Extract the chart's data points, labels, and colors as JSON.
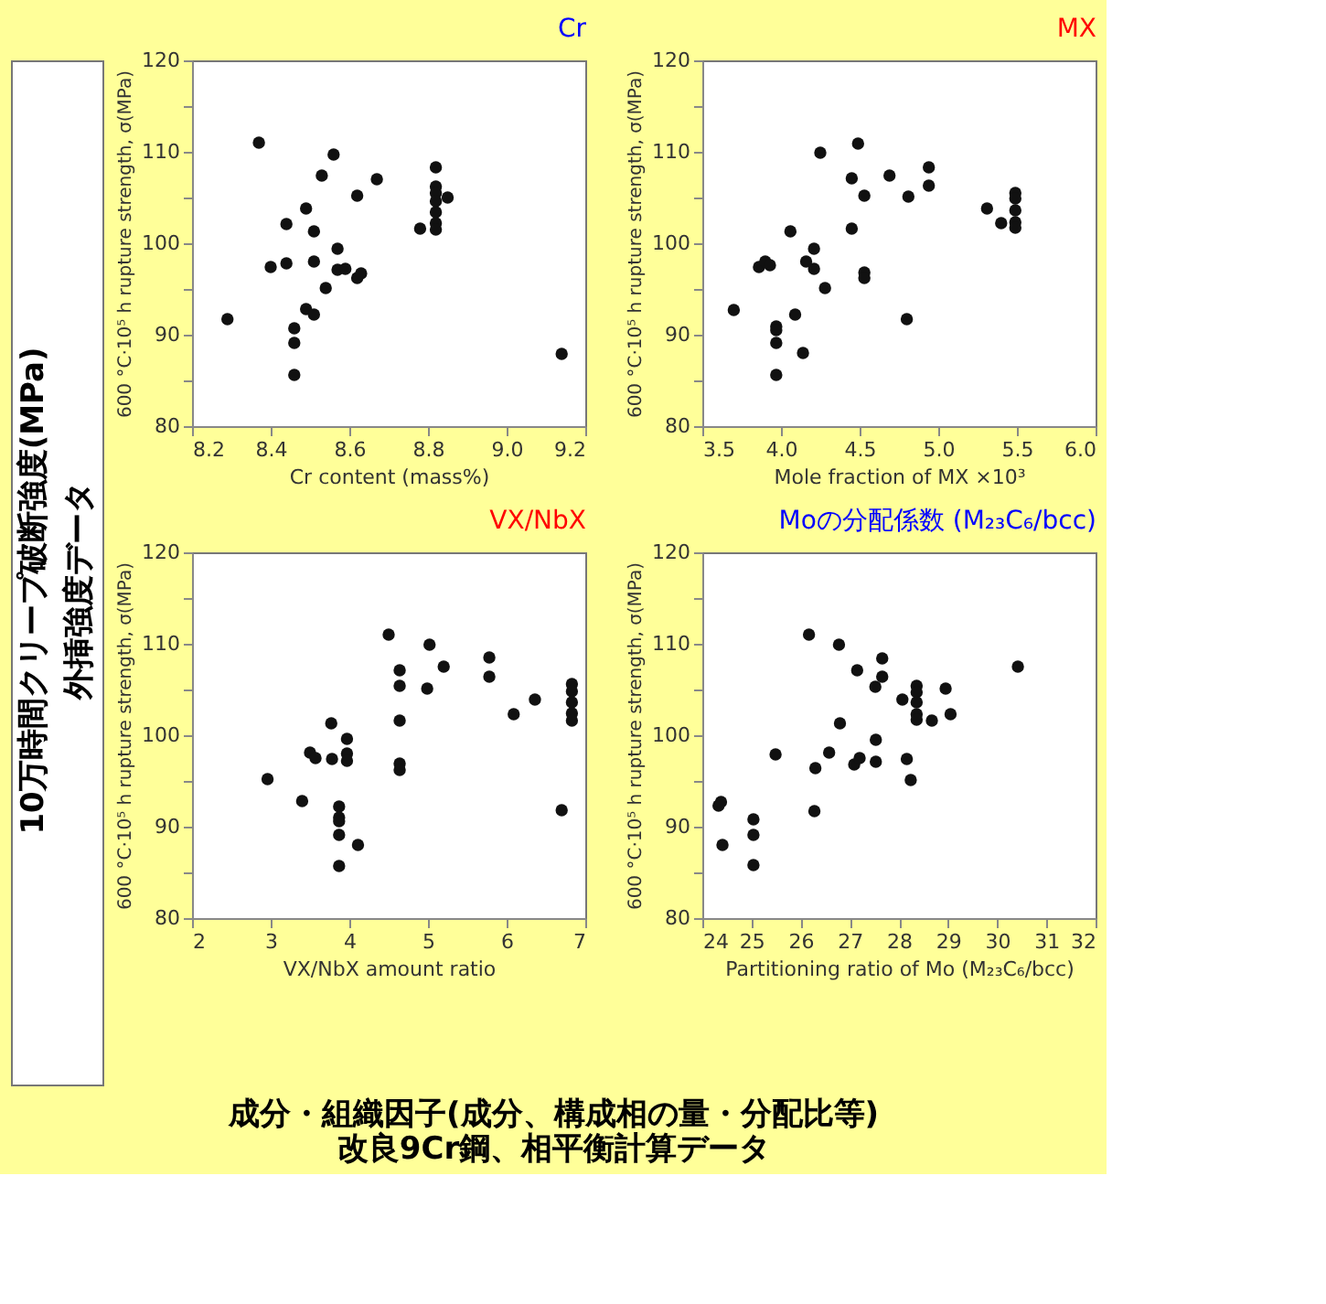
{
  "chart_data": [
    {
      "type": "scatter",
      "title": "Cr",
      "xlabel": "Cr content (mass%)",
      "ylabel": "600 °C·10⁵ h rupture strength, σ(MPa)",
      "x": [
        8.37,
        8.29,
        8.4,
        8.44,
        8.44,
        8.46,
        8.46,
        8.46,
        8.49,
        8.49,
        8.51,
        8.51,
        8.51,
        8.53,
        8.54,
        8.56,
        8.57,
        8.57,
        8.59,
        8.62,
        8.63,
        8.62,
        8.67,
        8.78,
        8.82,
        8.82,
        8.82,
        8.82,
        8.82,
        8.82,
        8.82,
        8.85,
        9.14
      ],
      "series": [
        {
          "color": "#111111",
          "values": [
            111,
            91.7,
            97.4,
            97.8,
            102.1,
            90.7,
            89.1,
            85.6,
            103.8,
            92.8,
            92.2,
            101.3,
            98.0,
            107.4,
            95.1,
            109.7,
            99.4,
            97.1,
            97.2,
            96.2,
            96.7,
            105.2,
            107.0,
            101.6,
            108.3,
            106.2,
            105.5,
            104.6,
            103.4,
            102.2,
            101.5,
            105.0,
            87.9
          ]
        }
      ],
      "xlim": [
        8.2,
        9.2
      ],
      "xticks": [
        8.2,
        8.4,
        8.6,
        8.8,
        {
          "value": 9,
          "label": "9.0"
        },
        9.2
      ],
      "ylim": [
        80,
        120
      ],
      "yticks": [
        80,
        {
          "value": 85,
          "label": null
        },
        90,
        {
          "value": 95,
          "label": null
        },
        100,
        {
          "value": 105,
          "label": null
        },
        110,
        {
          "value": 115,
          "label": null
        },
        120
      ],
      "grid": false,
      "marker": "circle",
      "annotations": [
        "10万時間クリープ破断強度(MPa)",
        "外挿強度データ",
        "成分・組織因子(成分、構成相の量・分配比等)",
        "改良9Cr鋼、相平衡計算データ"
      ]
    },
    {
      "type": "scatter",
      "title": "MX",
      "xlabel": "Mole fraction of MX ×10³",
      "ylabel": "600 °C·10⁵ h rupture strength, σ(MPa)",
      "x": [
        3.7,
        3.86,
        3.9,
        3.93,
        3.97,
        3.97,
        3.97,
        3.97,
        4.06,
        4.09,
        4.14,
        4.16,
        4.21,
        4.21,
        4.25,
        4.28,
        4.45,
        4.45,
        4.49,
        4.53,
        4.53,
        4.53,
        4.69,
        4.8,
        4.81,
        4.94,
        4.94,
        5.31,
        5.4,
        5.49,
        5.49,
        5.49,
        5.49,
        5.49
      ],
      "series": [
        {
          "color": "#111111",
          "values": [
            92.7,
            97.4,
            98.0,
            97.6,
            90.9,
            90.5,
            89.1,
            85.6,
            101.3,
            92.2,
            88.0,
            98.0,
            99.4,
            97.2,
            109.9,
            95.1,
            107.1,
            101.6,
            110.9,
            105.2,
            96.8,
            96.2,
            107.4,
            91.7,
            105.1,
            108.3,
            106.3,
            103.8,
            102.2,
            105.5,
            104.9,
            103.6,
            102.3,
            101.7
          ]
        }
      ],
      "xlim": [
        3.5,
        6.0
      ],
      "xticks": [
        3.5,
        {
          "value": 4,
          "label": "4.0"
        },
        4.5,
        {
          "value": 5,
          "label": "5.0"
        },
        5.5,
        {
          "value": 6,
          "label": "6.0"
        }
      ],
      "ylim": [
        80,
        120
      ],
      "yticks": [
        80,
        {
          "value": 85,
          "label": null
        },
        90,
        {
          "value": 95,
          "label": null
        },
        100,
        {
          "value": 105,
          "label": null
        },
        110,
        {
          "value": 115,
          "label": null
        },
        120
      ],
      "grid": false,
      "marker": "circle"
    },
    {
      "type": "scatter",
      "title": "VX/NbX",
      "xlabel": "VX/NbX amount ratio",
      "ylabel": "600 °C·10⁵ h rupture strength, σ(MPa)",
      "x": [
        4.5,
        2.96,
        3.4,
        3.5,
        3.57,
        3.77,
        3.78,
        3.87,
        3.87,
        3.87,
        3.87,
        3.87,
        3.97,
        3.97,
        3.97,
        4.11,
        4.64,
        4.64,
        4.64,
        4.64,
        4.64,
        4.99,
        5.02,
        5.2,
        5.78,
        5.78,
        6.09,
        6.36,
        6.7,
        6.83,
        6.83,
        6.83,
        6.83,
        6.83
      ],
      "series": [
        {
          "color": "#111111",
          "values": [
            111.0,
            95.2,
            92.8,
            98.1,
            97.5,
            101.3,
            97.4,
            92.2,
            91.0,
            90.6,
            89.1,
            85.7,
            99.6,
            98.0,
            97.2,
            88.0,
            107.1,
            105.4,
            101.6,
            96.9,
            96.2,
            105.1,
            109.9,
            107.5,
            108.5,
            106.4,
            102.3,
            103.9,
            91.8,
            105.6,
            104.8,
            103.6,
            102.4,
            101.6
          ]
        }
      ],
      "xlim": [
        2,
        7
      ],
      "xticks": [
        2,
        3,
        4,
        5,
        6,
        7
      ],
      "ylim": [
        80,
        120
      ],
      "yticks": [
        80,
        {
          "value": 85,
          "label": null
        },
        90,
        {
          "value": 95,
          "label": null
        },
        100,
        {
          "value": 105,
          "label": null
        },
        110,
        {
          "value": 115,
          "label": null
        },
        120
      ],
      "grid": false,
      "marker": "circle"
    },
    {
      "type": "scatter",
      "title": "Moの分配係数 (M₂₃C₆/bcc)",
      "xlabel": "Partitioning ratio of Mo (M₂₃C₆/bcc)",
      "ylabel": "600 °C·10⁵ h rupture strength, σ(MPa)",
      "x": [
        26.17,
        26.78,
        24.33,
        24.38,
        24.41,
        25.04,
        25.04,
        25.04,
        25.49,
        26.3,
        26.28,
        26.58,
        26.8,
        27.09,
        27.15,
        27.2,
        27.52,
        27.53,
        27.53,
        27.66,
        27.66,
        28.07,
        28.16,
        28.24,
        28.36,
        28.36,
        28.36,
        28.36,
        28.36,
        28.67,
        28.95,
        29.05,
        30.42
      ],
      "series": [
        {
          "color": "#111111",
          "values": [
            111.0,
            109.9,
            92.3,
            92.7,
            88.0,
            90.8,
            89.1,
            85.8,
            97.9,
            96.4,
            91.7,
            98.1,
            101.3,
            96.8,
            107.1,
            97.5,
            105.3,
            99.5,
            97.1,
            108.4,
            106.4,
            103.9,
            97.4,
            95.1,
            105.4,
            104.7,
            103.6,
            102.3,
            101.7,
            101.6,
            105.1,
            102.3,
            107.5
          ]
        }
      ],
      "xlim": [
        24,
        32
      ],
      "xticks": [
        24,
        25,
        26,
        27,
        28,
        29,
        30,
        31,
        32
      ],
      "ylim": [
        80,
        120
      ],
      "yticks": [
        80,
        {
          "value": 85,
          "label": null
        },
        90,
        {
          "value": 95,
          "label": null
        },
        100,
        {
          "value": 105,
          "label": null
        },
        110,
        {
          "value": 115,
          "label": null
        },
        120
      ],
      "grid": false,
      "marker": "circle"
    }
  ]
}
